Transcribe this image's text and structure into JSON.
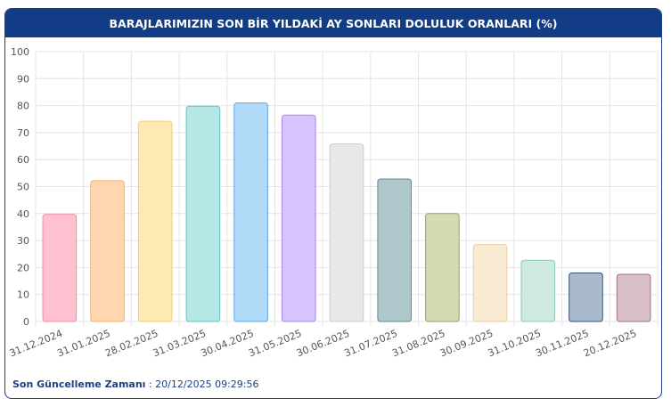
{
  "chart_data": {
    "type": "bar",
    "title": "BARAJLARIMIZIN SON BİR YILDAKİ AY SONLARI DOLULUK ORANLARI (%)",
    "categories": [
      "31.12.2024",
      "31.01.2025",
      "28.02.2025",
      "31.03.2025",
      "30.04.2025",
      "31.05.2025",
      "30.06.2025",
      "31.07.2025",
      "31.08.2025",
      "30.09.2025",
      "31.10.2025",
      "30.11.2025",
      "20.12.2025"
    ],
    "values": [
      39.7,
      52.2,
      74.2,
      79.8,
      81.0,
      76.5,
      65.8,
      52.8,
      40.0,
      28.5,
      22.7,
      18.0,
      17.5
    ],
    "colors": [
      "#ffc1d0",
      "#ffd6ae",
      "#ffe9b3",
      "#b5e7e6",
      "#b1d9f8",
      "#d7c4fc",
      "#e6e8ea",
      "#adc7ca",
      "#d6dab2",
      "#f8ebd2",
      "#cee9e1",
      "#aabacd",
      "#d8bec6"
    ],
    "edge_colors": [
      "#f48aa6",
      "#f5ad70",
      "#f3cd73",
      "#62c3c0",
      "#5aa8e8",
      "#a884ec",
      "#c9ccd0",
      "#5c8d92",
      "#9aa35b",
      "#e8cf9c",
      "#8ccbb8",
      "#344f78",
      "#9c7683"
    ],
    "ylim": [
      0,
      100
    ],
    "yticks": [
      0,
      10,
      20,
      30,
      40,
      50,
      60,
      70,
      80,
      90,
      100
    ],
    "grid": true
  },
  "footer": {
    "label": "Son Güncelleme Zamanı",
    "separator": ":",
    "value": "20/12/2025 09:29:56"
  }
}
